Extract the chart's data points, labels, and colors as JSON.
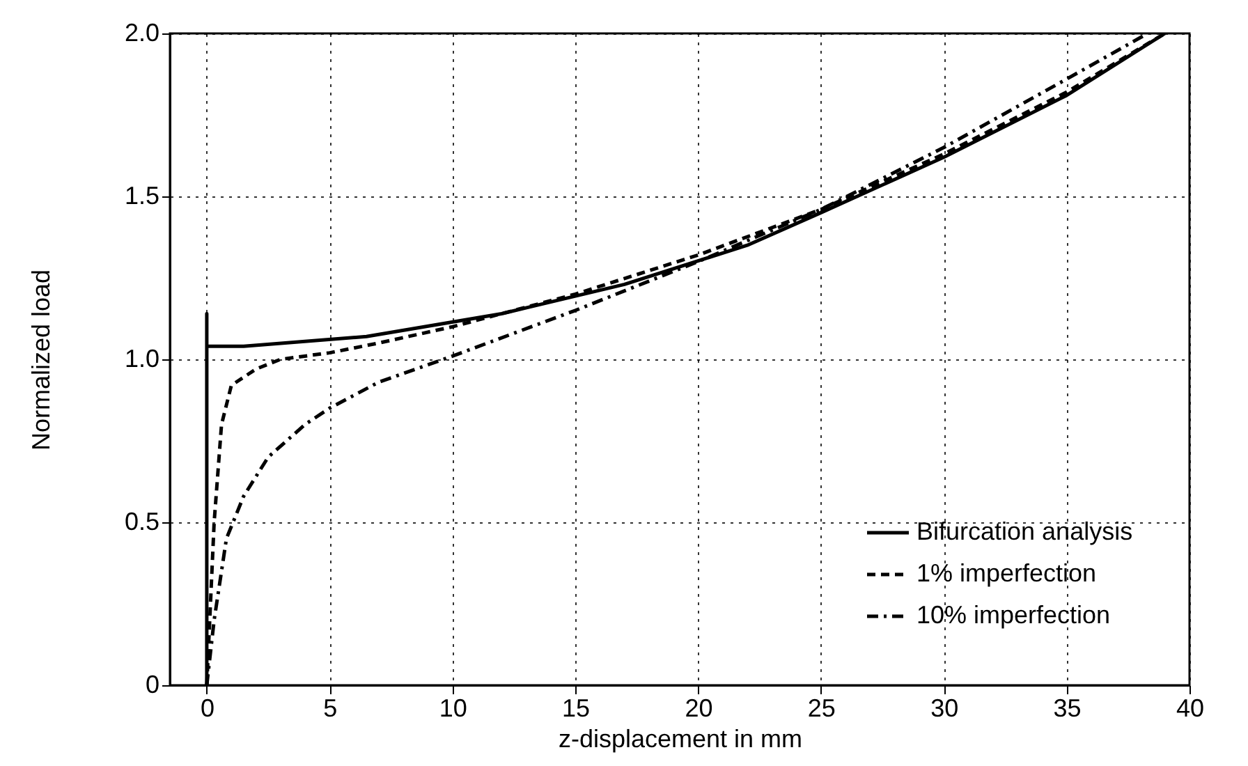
{
  "chart_data": {
    "type": "line",
    "xlabel": "z-displacement in mm",
    "ylabel": "Normalized load",
    "xlim": [
      -1.5,
      40
    ],
    "xticks": [
      0,
      5,
      10,
      15,
      20,
      25,
      30,
      35,
      40
    ],
    "ylim": [
      0,
      2
    ],
    "yticks": [
      0,
      {
        "value": 0.5,
        "label": "0.5"
      },
      {
        "value": 1,
        "label": "1.0"
      },
      {
        "value": 1.5,
        "label": "1.5"
      },
      {
        "value": 2,
        "label": "2.0"
      }
    ],
    "grid": true,
    "legend": "bottom right",
    "marker": "none",
    "series": [
      {
        "name": "Bifurcation analysis",
        "color": "#000000",
        "line_style": "solid",
        "x": [
          0,
          0,
          0,
          1.5,
          6.5,
          12,
          17,
          22,
          25,
          30,
          35,
          39
        ],
        "values": [
          0,
          1.14,
          1.04,
          1.04,
          1.07,
          1.14,
          1.23,
          1.35,
          1.45,
          1.62,
          1.81,
          2.0
        ]
      },
      {
        "name": "1%   imperfection",
        "color": "#000000",
        "line_style": "dashed",
        "x": [
          0,
          0.3,
          0.6,
          1,
          2,
          3,
          5,
          7,
          10,
          15,
          20,
          25,
          30,
          35,
          39
        ],
        "values": [
          0,
          0.5,
          0.8,
          0.92,
          0.97,
          1.0,
          1.02,
          1.05,
          1.1,
          1.2,
          1.32,
          1.46,
          1.63,
          1.82,
          2.0
        ]
      },
      {
        "name": "10% imperfection",
        "color": "#000000",
        "line_style": "dashdot",
        "x": [
          0,
          0.3,
          0.8,
          1.5,
          2.5,
          4,
          5,
          7,
          10,
          15,
          20,
          25,
          30,
          35,
          38.3
        ],
        "values": [
          0,
          0.2,
          0.45,
          0.58,
          0.7,
          0.8,
          0.85,
          0.93,
          1.01,
          1.15,
          1.3,
          1.46,
          1.65,
          1.86,
          2.0
        ]
      }
    ]
  }
}
